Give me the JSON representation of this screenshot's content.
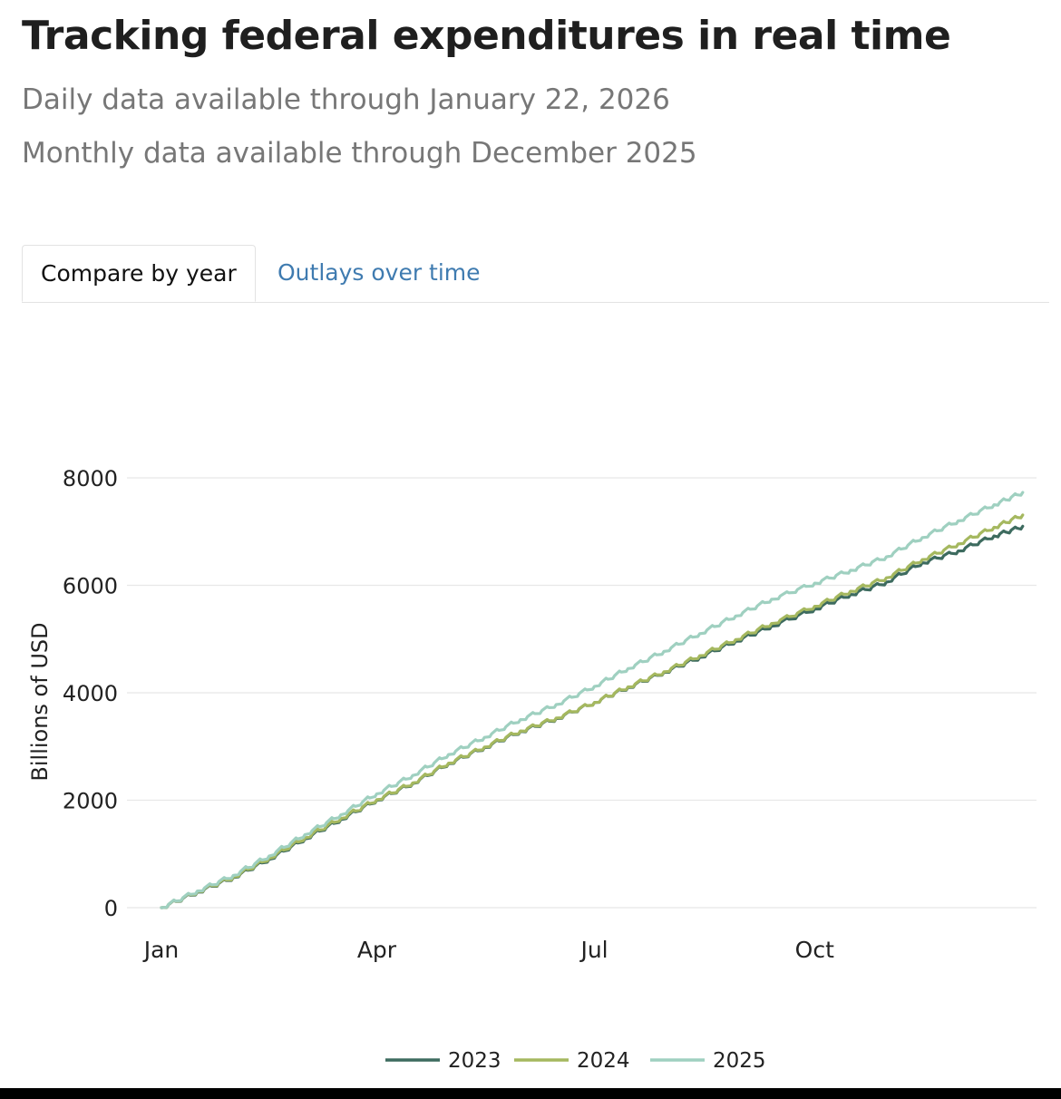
{
  "header": {
    "title": "Tracking federal expenditures in real time",
    "daily_note": "Daily data available through January 22, 2026",
    "monthly_note": "Monthly data available through December 2025"
  },
  "tabs": [
    {
      "label": "Compare by year",
      "active": true
    },
    {
      "label": "Outlays over time",
      "active": false
    }
  ],
  "colors": {
    "2023": "#3d6b5f",
    "2024": "#a5b85f",
    "2025": "#9fd0c0",
    "grid": "#e8e8e8",
    "tab_link": "#3f7bb0"
  },
  "chart_data": {
    "type": "line",
    "title": "",
    "xlabel": "",
    "ylabel": "Billions of USD",
    "x_ticks": [
      "Jan",
      "Apr",
      "Jul",
      "Oct"
    ],
    "x_tick_days": [
      0,
      90,
      181,
      273
    ],
    "y_ticks": [
      0,
      2000,
      4000,
      6000,
      8000
    ],
    "ylim": [
      0,
      8000
    ],
    "xlim_days": [
      0,
      365
    ],
    "grid": true,
    "legend_position": "bottom-center",
    "x_days": [
      0,
      15,
      30,
      45,
      60,
      75,
      90,
      105,
      120,
      135,
      150,
      165,
      181,
      195,
      210,
      225,
      240,
      255,
      273,
      288,
      303,
      318,
      333,
      348,
      360
    ],
    "series": [
      {
        "name": "2023",
        "color": "#3d6b5f",
        "values": [
          0,
          290,
          560,
          900,
          1280,
          1640,
          2000,
          2310,
          2680,
          2980,
          3280,
          3520,
          3820,
          4100,
          4380,
          4660,
          4960,
          5240,
          5560,
          5830,
          6060,
          6420,
          6640,
          6920,
          7100
        ]
      },
      {
        "name": "2024",
        "color": "#a5b85f",
        "values": [
          0,
          300,
          570,
          920,
          1300,
          1660,
          2010,
          2320,
          2690,
          2990,
          3290,
          3530,
          3820,
          4110,
          4390,
          4690,
          4990,
          5290,
          5610,
          5890,
          6140,
          6480,
          6770,
          7080,
          7310
        ]
      },
      {
        "name": "2025",
        "color": "#9fd0c0",
        "values": [
          0,
          310,
          600,
          960,
          1360,
          1730,
          2120,
          2460,
          2850,
          3170,
          3500,
          3780,
          4120,
          4450,
          4770,
          5100,
          5430,
          5740,
          6040,
          6280,
          6530,
          6890,
          7200,
          7500,
          7730
        ]
      }
    ]
  }
}
